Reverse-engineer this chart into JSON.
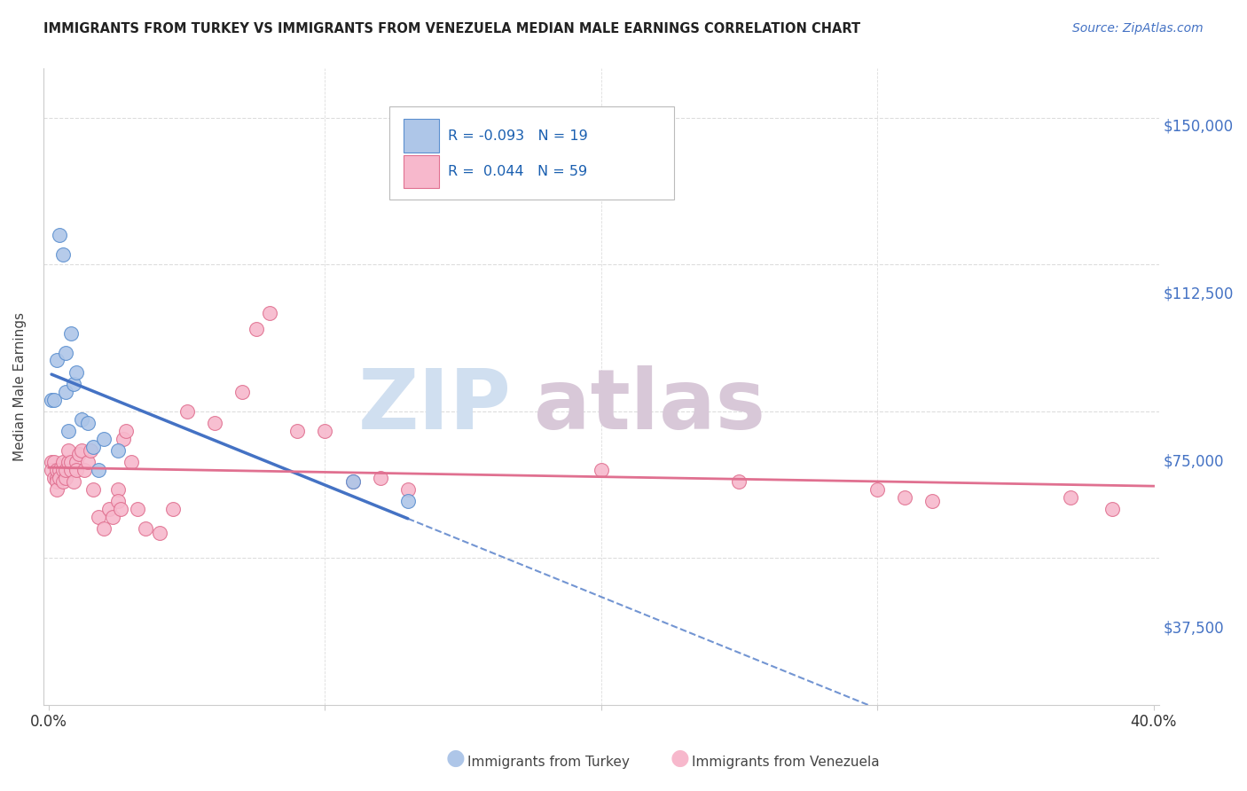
{
  "title": "IMMIGRANTS FROM TURKEY VS IMMIGRANTS FROM VENEZUELA MEDIAN MALE EARNINGS CORRELATION CHART",
  "source": "Source: ZipAtlas.com",
  "ylabel": "Median Male Earnings",
  "ylim": [
    20000,
    162500
  ],
  "xlim": [
    -0.002,
    0.402
  ],
  "turkey_R": "-0.093",
  "turkey_N": "19",
  "venezuela_R": "0.044",
  "venezuela_N": "59",
  "turkey_color": "#aec6e8",
  "turkey_edge_color": "#5b8fcf",
  "turkey_line_color": "#4472c4",
  "venezuela_color": "#f7b8cc",
  "venezuela_edge_color": "#e07090",
  "venezuela_line_color": "#e07090",
  "ytick_vals": [
    37500,
    75000,
    112500,
    150000
  ],
  "ytick_labels": [
    "$37,500",
    "$75,000",
    "$112,500",
    "$150,000"
  ],
  "xtick_vals": [
    0.0,
    0.1,
    0.2,
    0.3,
    0.4
  ],
  "xtick_labels": [
    "0.0%",
    "",
    "",
    "",
    "40.0%"
  ],
  "grid_color": "#dddddd",
  "watermark_color": "#d0dff0",
  "watermark2_color": "#d8c8d8",
  "turkey_points_x": [
    0.001,
    0.002,
    0.003,
    0.004,
    0.005,
    0.006,
    0.006,
    0.007,
    0.008,
    0.009,
    0.01,
    0.012,
    0.014,
    0.016,
    0.018,
    0.02,
    0.025,
    0.11,
    0.13
  ],
  "turkey_points_y": [
    78000,
    78000,
    88000,
    120000,
    115000,
    80000,
    90000,
    70000,
    95000,
    82000,
    85000,
    73000,
    72000,
    66000,
    60000,
    68000,
    65000,
    57000,
    52000
  ],
  "venezuela_points_x": [
    0.001,
    0.001,
    0.002,
    0.002,
    0.003,
    0.003,
    0.003,
    0.003,
    0.004,
    0.004,
    0.005,
    0.005,
    0.005,
    0.006,
    0.006,
    0.007,
    0.007,
    0.008,
    0.008,
    0.009,
    0.01,
    0.01,
    0.011,
    0.012,
    0.013,
    0.014,
    0.015,
    0.016,
    0.018,
    0.02,
    0.022,
    0.023,
    0.025,
    0.025,
    0.026,
    0.027,
    0.028,
    0.03,
    0.032,
    0.035,
    0.04,
    0.045,
    0.05,
    0.06,
    0.07,
    0.075,
    0.08,
    0.09,
    0.1,
    0.11,
    0.12,
    0.13,
    0.2,
    0.25,
    0.3,
    0.31,
    0.32,
    0.37,
    0.385
  ],
  "venezuela_points_y": [
    62000,
    60000,
    62000,
    58000,
    58000,
    60000,
    57000,
    55000,
    60000,
    58000,
    57000,
    60000,
    62000,
    58000,
    60000,
    62000,
    65000,
    60000,
    62000,
    57000,
    62000,
    60000,
    64000,
    65000,
    60000,
    62000,
    65000,
    55000,
    48000,
    45000,
    50000,
    48000,
    55000,
    52000,
    50000,
    68000,
    70000,
    62000,
    50000,
    45000,
    44000,
    50000,
    75000,
    72000,
    80000,
    96000,
    100000,
    70000,
    70000,
    57000,
    58000,
    55000,
    60000,
    57000,
    55000,
    53000,
    52000,
    53000,
    50000
  ]
}
